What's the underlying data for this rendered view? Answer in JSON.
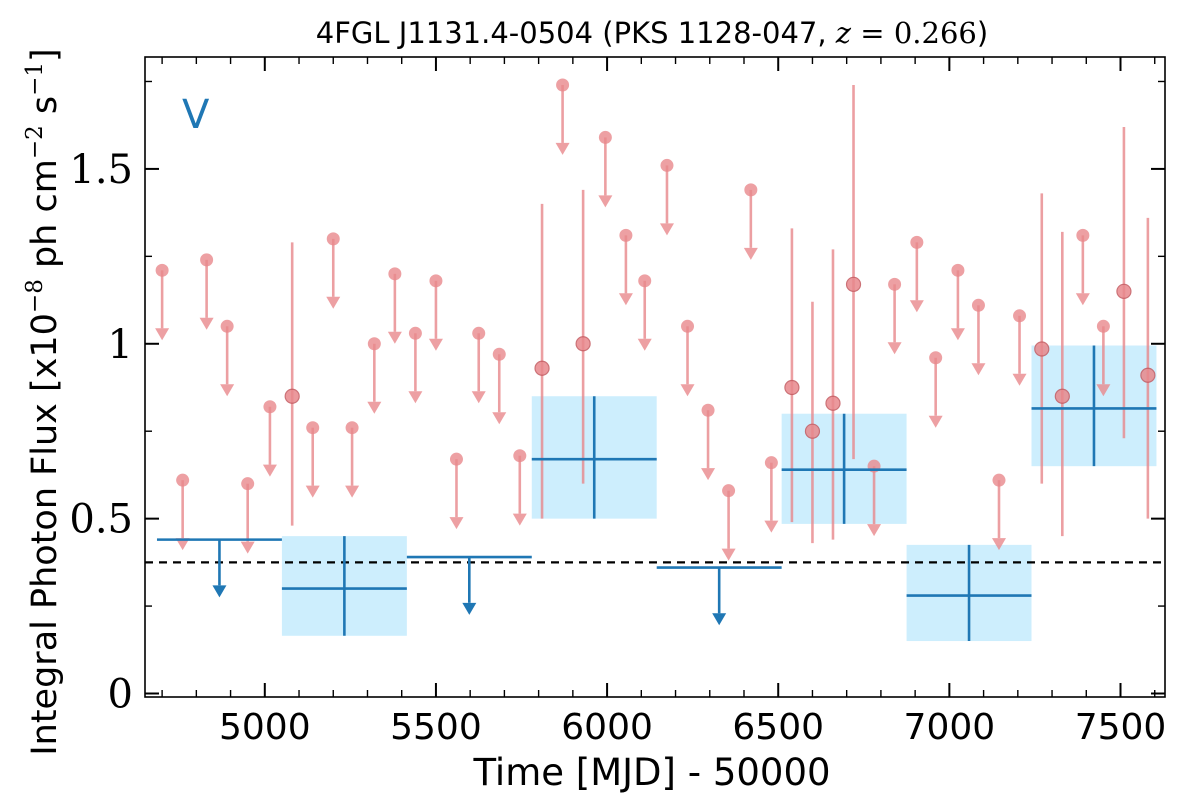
{
  "chart_data": {
    "type": "scatter",
    "title": {
      "main": "4FGL J1131.4-0504 (PKS 1128-047, ",
      "redshift_var": "z",
      "redshift_eq": " = ",
      "redshift_val": "0.266",
      "close": ")"
    },
    "xlabel": "Time [MJD] - 50000",
    "ylabel": {
      "pre": "Integral Photon Flux [x10",
      "exp1": "−8",
      "mid": " ph cm",
      "exp2": "−2",
      "mid2": " s",
      "exp3": "−1",
      "post": "]"
    },
    "band_label": "V",
    "xlim": [
      4650,
      7630
    ],
    "ylim": [
      -0.01,
      1.82
    ],
    "x_ticks": [
      5000,
      5500,
      6000,
      6500,
      7000,
      7500
    ],
    "x_tick_labels": [
      "5000",
      "5500",
      "6000",
      "6500",
      "7000",
      "7500"
    ],
    "y_ticks": [
      0,
      0.5,
      1,
      1.5
    ],
    "y_tick_labels": [
      "0",
      "0.5",
      "1",
      "1.5"
    ],
    "reference_level": 0.375,
    "colors": {
      "short_bin": "#e8888c",
      "long_bin": "#1f77b4",
      "long_bin_fill": "#cdeefd",
      "reference_line": "#000000"
    },
    "series": [
      {
        "style": "short-bin",
        "detections": [
          {
            "x": 5080,
            "y": 0.85,
            "ylo": 0.48,
            "yhi": 1.29
          },
          {
            "x": 5810,
            "y": 0.93,
            "ylo": 0.5,
            "yhi": 1.4
          },
          {
            "x": 5930,
            "y": 1.0,
            "ylo": 0.6,
            "yhi": 1.44
          },
          {
            "x": 6540,
            "y": 0.875,
            "ylo": 0.49,
            "yhi": 1.33
          },
          {
            "x": 6600,
            "y": 0.75,
            "ylo": 0.43,
            "yhi": 1.12
          },
          {
            "x": 6660,
            "y": 0.83,
            "ylo": 0.44,
            "yhi": 1.27
          },
          {
            "x": 6720,
            "y": 1.17,
            "ylo": 0.67,
            "yhi": 1.74
          },
          {
            "x": 7270,
            "y": 0.985,
            "ylo": 0.6,
            "yhi": 1.43
          },
          {
            "x": 7330,
            "y": 0.85,
            "ylo": 0.45,
            "yhi": 1.32
          },
          {
            "x": 7510,
            "y": 1.15,
            "ylo": 0.73,
            "yhi": 1.62
          },
          {
            "x": 7580,
            "y": 0.91,
            "ylo": 0.5,
            "yhi": 1.36
          }
        ],
        "upper_limits": [
          {
            "x": 4700,
            "y": 1.21
          },
          {
            "x": 4760,
            "y": 0.61
          },
          {
            "x": 4830,
            "y": 1.24
          },
          {
            "x": 4890,
            "y": 1.05
          },
          {
            "x": 4950,
            "y": 0.6
          },
          {
            "x": 5015,
            "y": 0.82
          },
          {
            "x": 5140,
            "y": 0.76
          },
          {
            "x": 5200,
            "y": 1.3
          },
          {
            "x": 5255,
            "y": 0.76
          },
          {
            "x": 5320,
            "y": 1.0
          },
          {
            "x": 5380,
            "y": 1.2
          },
          {
            "x": 5440,
            "y": 1.03
          },
          {
            "x": 5500,
            "y": 1.18
          },
          {
            "x": 5560,
            "y": 0.67
          },
          {
            "x": 5625,
            "y": 1.03
          },
          {
            "x": 5685,
            "y": 0.97
          },
          {
            "x": 5745,
            "y": 0.68
          },
          {
            "x": 5870,
            "y": 1.74
          },
          {
            "x": 5995,
            "y": 1.59
          },
          {
            "x": 6055,
            "y": 1.31
          },
          {
            "x": 6110,
            "y": 1.18
          },
          {
            "x": 6175,
            "y": 1.51
          },
          {
            "x": 6235,
            "y": 1.05
          },
          {
            "x": 6295,
            "y": 0.81
          },
          {
            "x": 6355,
            "y": 0.58
          },
          {
            "x": 6420,
            "y": 1.44
          },
          {
            "x": 6480,
            "y": 0.66
          },
          {
            "x": 6780,
            "y": 0.65
          },
          {
            "x": 6840,
            "y": 1.17
          },
          {
            "x": 6905,
            "y": 1.29
          },
          {
            "x": 6960,
            "y": 0.96
          },
          {
            "x": 7025,
            "y": 1.21
          },
          {
            "x": 7085,
            "y": 1.11
          },
          {
            "x": 7145,
            "y": 0.61
          },
          {
            "x": 7205,
            "y": 1.08
          },
          {
            "x": 7390,
            "y": 1.31
          },
          {
            "x": 7450,
            "y": 1.05
          }
        ]
      },
      {
        "style": "long-bin",
        "detections": [
          {
            "x0": 5050,
            "x1": 5415,
            "y": 0.3,
            "ylo": 0.165,
            "yhi": 0.45
          },
          {
            "x0": 5780,
            "x1": 6145,
            "y": 0.67,
            "ylo": 0.5,
            "yhi": 0.85
          },
          {
            "x0": 6510,
            "x1": 6875,
            "y": 0.64,
            "ylo": 0.485,
            "yhi": 0.8
          },
          {
            "x0": 6875,
            "x1": 7240,
            "y": 0.28,
            "ylo": 0.15,
            "yhi": 0.425
          },
          {
            "x0": 7240,
            "x1": 7605,
            "y": 0.815,
            "ylo": 0.65,
            "yhi": 0.995
          }
        ],
        "upper_limits": [
          {
            "x0": 4685,
            "x1": 5050,
            "y": 0.44
          },
          {
            "x0": 5415,
            "x1": 5780,
            "y": 0.39
          },
          {
            "x0": 6145,
            "x1": 6510,
            "y": 0.36
          }
        ]
      }
    ]
  }
}
